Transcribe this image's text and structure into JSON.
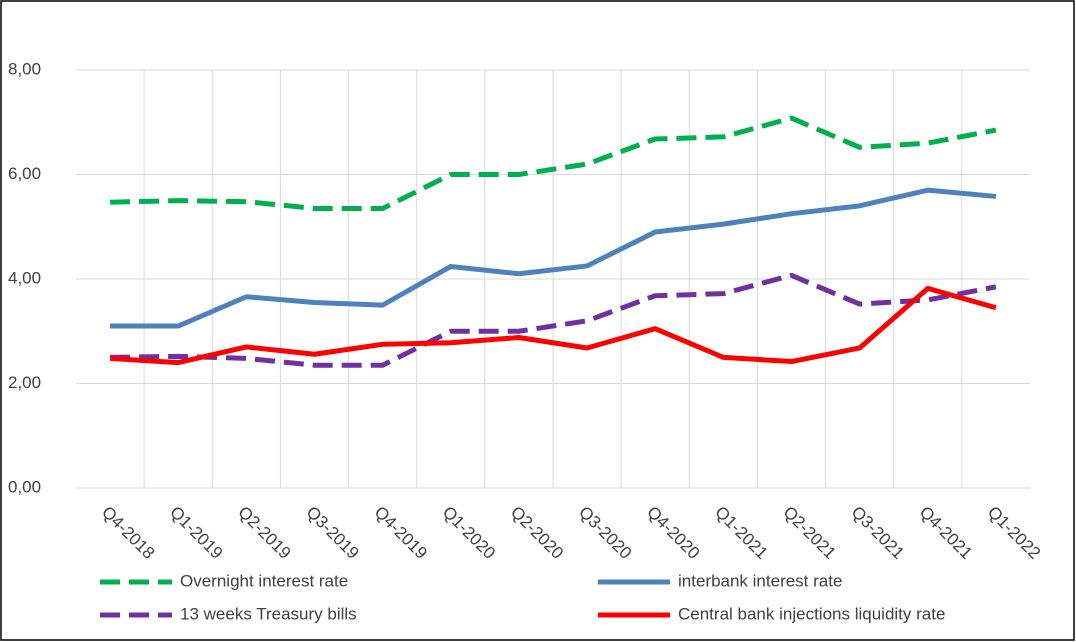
{
  "chart_data": {
    "type": "line",
    "categories": [
      "Q4-2018",
      "Q1-2019",
      "Q2-2019",
      "Q3-2019",
      "Q4-2019",
      "Q1-2020",
      "Q2-2020",
      "Q3-2020",
      "Q4-2020",
      "Q1-2021",
      "Q2-2021",
      "Q3-2021",
      "Q4-2021",
      "Q1-2022"
    ],
    "series": [
      {
        "name": "Overnight interest rate",
        "color": "#00b050",
        "dash": true,
        "values": [
          5.47,
          5.5,
          5.48,
          5.35,
          5.35,
          6.0,
          6.0,
          6.2,
          6.68,
          6.72,
          7.08,
          6.52,
          6.6,
          6.85
        ]
      },
      {
        "name": "interbank interest rate",
        "color": "#4f81bd",
        "dash": false,
        "values": [
          3.1,
          3.1,
          3.66,
          3.55,
          3.5,
          4.24,
          4.1,
          4.25,
          4.9,
          5.05,
          5.25,
          5.4,
          5.7,
          5.58
        ]
      },
      {
        "name": "13 weeks Treasury bills",
        "color": "#7030a0",
        "dash": true,
        "values": [
          2.5,
          2.52,
          2.48,
          2.35,
          2.35,
          3.0,
          3.0,
          3.2,
          3.68,
          3.72,
          4.07,
          3.52,
          3.6,
          3.85
        ]
      },
      {
        "name": "Central bank injections liquidity rate",
        "color": "#ff0000",
        "dash": false,
        "values": [
          2.48,
          2.4,
          2.7,
          2.56,
          2.75,
          2.78,
          2.88,
          2.68,
          3.05,
          2.5,
          2.42,
          2.68,
          3.82,
          3.45
        ]
      }
    ],
    "ylim": [
      0,
      8
    ],
    "yticks": [
      {
        "value": 0,
        "label": "0,00"
      },
      {
        "value": 2,
        "label": "2,00"
      },
      {
        "value": 4,
        "label": "4,00"
      },
      {
        "value": 6,
        "label": "6,00"
      },
      {
        "value": 8,
        "label": "8,00"
      }
    ],
    "grid": true,
    "legend": "bottom"
  }
}
